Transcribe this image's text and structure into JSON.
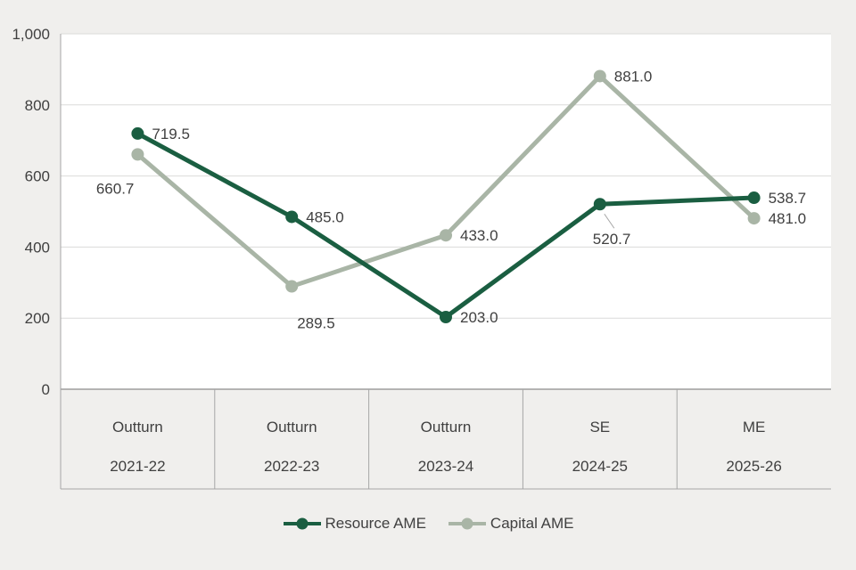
{
  "chart_data": {
    "type": "line",
    "categories": [
      "Outturn",
      "Outturn",
      "Outturn",
      "SE",
      "ME"
    ],
    "category_years": [
      "2021-22",
      "2022-23",
      "2023-24",
      "2024-25",
      "2025-26"
    ],
    "ylim": [
      0,
      1000
    ],
    "ytick_step": 200,
    "ytick_labels": [
      "0",
      "200",
      "400",
      "600",
      "800",
      "1,000"
    ],
    "grid": true,
    "legend_position": "bottom",
    "series": [
      {
        "name": "Resource AME",
        "color": "#1a5e41",
        "values": [
          719.5,
          485.0,
          203.0,
          520.7,
          538.7
        ],
        "label_placement": [
          "right",
          "right",
          "right",
          "below-leader",
          "right"
        ]
      },
      {
        "name": "Capital AME",
        "color": "#a9b5a6",
        "values": [
          660.7,
          289.5,
          433.0,
          881.0,
          481.0
        ],
        "label_placement": [
          "below-left",
          "below-right",
          "right",
          "right",
          "right"
        ]
      }
    ],
    "colors": {
      "plot_background": "#ffffff",
      "page_background": "#f0efed",
      "gridline": "#dcdcda",
      "axis_line": "#8c8c8c",
      "table_border": "#a6a6a6",
      "text": "#404040"
    }
  }
}
